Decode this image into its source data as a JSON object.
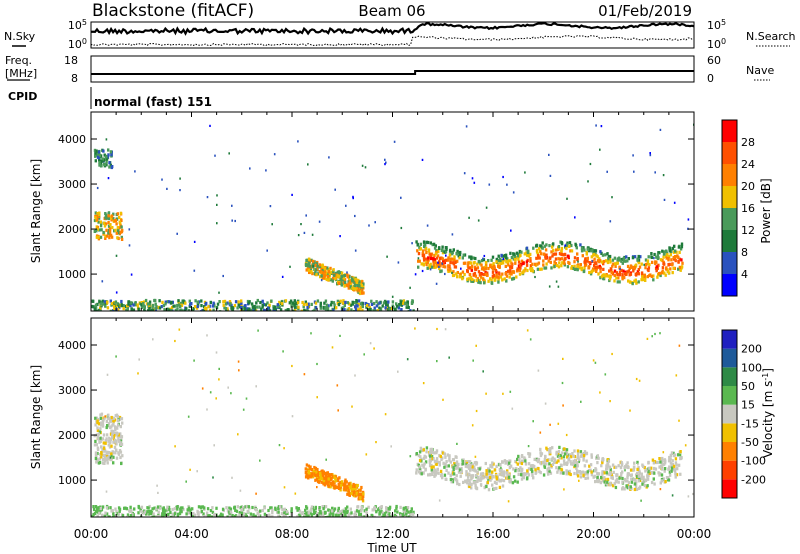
{
  "header": {
    "station": "Blackstone (fitACF)",
    "beam": "Beam 06",
    "date": "01/Feb/2019"
  },
  "side_labels": {
    "nsky": "N.Sky",
    "freq_line1": "Freq.",
    "freq_line2": "[MHz]",
    "cpid": "CPID",
    "nsearch": "N.Search",
    "nave": "Nave"
  },
  "cpid_text": "normal (fast) 151",
  "noise_panel": {
    "left_ticks": [
      "10^5",
      "10^0"
    ],
    "right_ticks": [
      "10^5",
      "10^0"
    ]
  },
  "freq_panel": {
    "left_ticks": [
      "18",
      "8"
    ],
    "right_ticks": [
      "60",
      "0"
    ]
  },
  "colors": {
    "power_scale": [
      "#0000ff",
      "#2a52be",
      "#1e7a3a",
      "#4a9a5a",
      "#f0c000",
      "#ff8000",
      "#ff5000",
      "#ff0000"
    ],
    "velocity_scale": [
      "#ff0000",
      "#ff4000",
      "#ff8000",
      "#f0c000",
      "#c8c8c0",
      "#5ab850",
      "#2e8a46",
      "#1e5a9a",
      "#2020c0"
    ]
  },
  "chart_data": [
    {
      "type": "heatmap",
      "title": "",
      "xlabel": "",
      "ylabel": "Slant Range [km]",
      "xlim": [
        "00:00",
        "24:00"
      ],
      "ylim": [
        180,
        4600
      ],
      "x_ticks": [
        "00:00",
        "04:00",
        "08:00",
        "12:00",
        "16:00",
        "20:00",
        "00:00"
      ],
      "y_ticks": [
        1000,
        2000,
        3000,
        4000
      ],
      "colorbar": {
        "label": "Power [dB]",
        "range": [
          0,
          32
        ],
        "ticks": [
          4,
          8,
          12,
          16,
          20,
          24,
          28
        ]
      },
      "features": [
        {
          "name": "ground scatter band",
          "t_start_h": 0.0,
          "t_end_h": 12.8,
          "range_km": [
            200,
            450
          ],
          "power_db": 12
        },
        {
          "name": "early patch",
          "t_start_h": 0.1,
          "t_end_h": 1.2,
          "range_km": [
            1800,
            2400
          ],
          "power_db": 18
        },
        {
          "name": "early high patch",
          "t_start_h": 0.1,
          "t_end_h": 0.8,
          "range_km": [
            3400,
            3800
          ],
          "power_db": 10
        },
        {
          "name": "mid-morning arc",
          "t_start_h": 8.5,
          "t_end_h": 10.8,
          "range_km": [
            700,
            1400
          ],
          "power_db": 18
        },
        {
          "name": "main band",
          "t_start_h": 12.9,
          "t_end_h": 23.5,
          "range_km": [
            800,
            1900
          ],
          "power_db": 26
        }
      ]
    },
    {
      "type": "heatmap",
      "title": "",
      "xlabel": "Time UT",
      "ylabel": "Slant Range [km]",
      "xlim": [
        "00:00",
        "24:00"
      ],
      "ylim": [
        180,
        4600
      ],
      "x_ticks": [
        "00:00",
        "04:00",
        "08:00",
        "12:00",
        "16:00",
        "20:00",
        "00:00"
      ],
      "y_ticks": [
        1000,
        2000,
        3000,
        4000
      ],
      "colorbar": {
        "label": "Velocity [m s^-1]",
        "range": [
          -250,
          250
        ],
        "ticks": [
          200,
          100,
          50,
          15,
          -15,
          -50,
          -100,
          -200
        ]
      },
      "features": [
        {
          "name": "ground scatter band",
          "t_start_h": 0.0,
          "t_end_h": 12.8,
          "range_km": [
            200,
            450
          ],
          "velocity": 20
        },
        {
          "name": "early patch",
          "t_start_h": 0.1,
          "t_end_h": 1.2,
          "range_km": [
            1400,
            2500
          ],
          "velocity": 0
        },
        {
          "name": "mid-morning arc",
          "t_start_h": 8.5,
          "t_end_h": 10.8,
          "range_km": [
            700,
            1400
          ],
          "velocity": -60
        },
        {
          "name": "main band",
          "t_start_h": 12.9,
          "t_end_h": 23.5,
          "range_km": [
            800,
            1900
          ],
          "velocity": 0
        }
      ]
    }
  ]
}
